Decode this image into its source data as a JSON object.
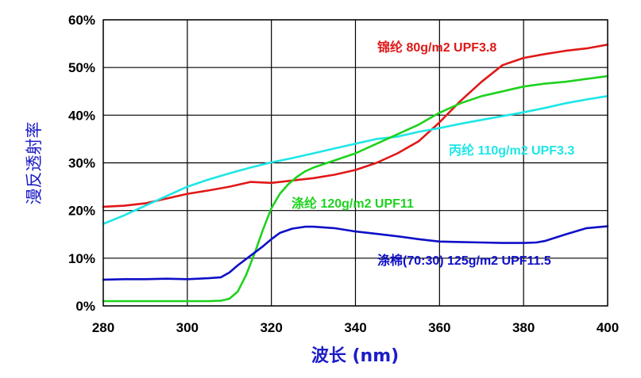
{
  "chart_data": {
    "type": "line",
    "title": "",
    "xlabel": "波长 (nm)",
    "ylabel": "漫反透射率",
    "xlim": [
      280,
      400
    ],
    "ylim": [
      0,
      60
    ],
    "x_ticks": [
      "280",
      "300",
      "320",
      "340",
      "360",
      "380",
      "400"
    ],
    "y_ticks": [
      "0%",
      "10%",
      "20%",
      "30%",
      "40%",
      "50%",
      "60%"
    ],
    "grid": true,
    "series": [
      {
        "name": "锦纶 80g/m2 UPF3.8",
        "color": "#e01818",
        "x": [
          280,
          285,
          290,
          295,
          300,
          305,
          310,
          315,
          320,
          325,
          330,
          335,
          340,
          345,
          350,
          355,
          360,
          365,
          370,
          375,
          380,
          385,
          390,
          395,
          400
        ],
        "y": [
          20.8,
          21,
          21.5,
          22.5,
          23.5,
          24.2,
          25,
          26,
          25.8,
          26.3,
          26.8,
          27.5,
          28.5,
          30,
          32,
          34.5,
          38.5,
          43,
          47,
          50.5,
          52,
          52.8,
          53.5,
          54,
          54.8
        ]
      },
      {
        "name": "丙纶 110g/m2 UPF3.3",
        "color": "#1ee6e6",
        "x": [
          280,
          285,
          290,
          295,
          300,
          305,
          310,
          315,
          320,
          325,
          330,
          335,
          340,
          345,
          350,
          355,
          360,
          365,
          370,
          375,
          380,
          385,
          390,
          395,
          400
        ],
        "y": [
          17.2,
          19,
          21,
          23,
          25,
          26.5,
          27.8,
          29,
          30.1,
          31,
          32,
          33,
          34,
          35,
          35.5,
          36.5,
          37.3,
          38.2,
          39,
          39.8,
          40.6,
          41.5,
          42.5,
          43.3,
          44
        ]
      },
      {
        "name": "涤纶 120g/m2 UPF11",
        "color": "#1ed21e",
        "x": [
          280,
          290,
          300,
          305,
          308,
          310,
          312,
          314,
          316,
          318,
          320,
          322,
          324,
          326,
          328,
          330,
          335,
          340,
          345,
          350,
          355,
          360,
          365,
          370,
          375,
          380,
          385,
          390,
          395,
          400
        ],
        "y": [
          1,
          1,
          1,
          1,
          1.1,
          1.5,
          3,
          6.5,
          11,
          16,
          20.5,
          23.5,
          25.5,
          27,
          28.2,
          29,
          30.5,
          32,
          34,
          36,
          38,
          40.5,
          42.5,
          44,
          45,
          46,
          46.6,
          47,
          47.6,
          48.2
        ]
      },
      {
        "name": "涤棉(70:30) 125g/m2 UPF11.5",
        "color": "#0f0fc8",
        "x": [
          280,
          285,
          290,
          295,
          300,
          305,
          308,
          310,
          312,
          315,
          318,
          320,
          322,
          325,
          328,
          330,
          335,
          340,
          345,
          350,
          355,
          360,
          365,
          370,
          375,
          380,
          383,
          385,
          390,
          395,
          400
        ],
        "y": [
          5.5,
          5.6,
          5.6,
          5.7,
          5.6,
          5.8,
          6,
          7,
          8.5,
          10.5,
          12.5,
          14,
          15.3,
          16.2,
          16.6,
          16.6,
          16.3,
          15.6,
          15.1,
          14.6,
          14,
          13.5,
          13.4,
          13.3,
          13.2,
          13.2,
          13.3,
          13.6,
          15,
          16.3,
          16.7
        ]
      }
    ]
  }
}
